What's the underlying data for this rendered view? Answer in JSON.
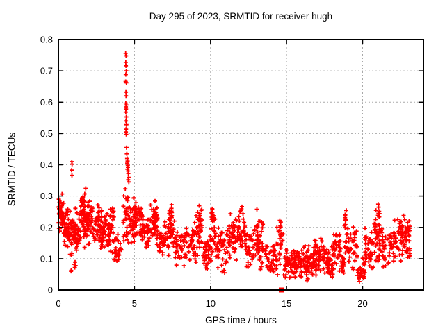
{
  "chart_data": {
    "type": "scatter",
    "title": "Day 295 of 2023, SRMTID for receiver hugh",
    "xlabel": "GPS time / hours",
    "ylabel": "SRMTID / TECUs",
    "xlim": [
      0,
      24
    ],
    "ylim": [
      0,
      0.8
    ],
    "xticks": [
      0,
      5,
      10,
      15,
      20
    ],
    "yticks": [
      0,
      0.1,
      0.2,
      0.3,
      0.4,
      0.5,
      0.6,
      0.7,
      0.8
    ],
    "grid": {
      "style": "dotted",
      "color": "#a8a8a8",
      "vertical_at": [
        5,
        10,
        15,
        20
      ],
      "horizontal_at": [
        0.1,
        0.2,
        0.3,
        0.4,
        0.5,
        0.6,
        0.7
      ]
    },
    "background": "#ffffff",
    "border_color": "#000000",
    "marker": {
      "shape": "plus",
      "color": "#ff0000",
      "size": 7
    },
    "flagged_point": {
      "shape": "filled-square",
      "color": "#ff0000",
      "x": 14.65,
      "y": 0.0,
      "size": 7
    },
    "legend": "none",
    "seed": 42,
    "clusters_format": "[t_start_hours, t_end_hours, n_points, value_min_TECUs, value_max_TECUs]",
    "clusters": [
      [
        0.0,
        0.35,
        40,
        0.17,
        0.315
      ],
      [
        0.35,
        0.7,
        40,
        0.13,
        0.27
      ],
      [
        0.7,
        1.05,
        36,
        0.1,
        0.26
      ],
      [
        0.8,
        1.2,
        5,
        0.055,
        0.085
      ],
      [
        1.05,
        1.45,
        40,
        0.08,
        0.28
      ],
      [
        1.45,
        1.8,
        44,
        0.13,
        0.33
      ],
      [
        1.5,
        1.62,
        8,
        0.22,
        0.325
      ],
      [
        1.8,
        2.2,
        42,
        0.13,
        0.305
      ],
      [
        2.2,
        2.7,
        40,
        0.13,
        0.285
      ],
      [
        2.6,
        2.72,
        6,
        0.18,
        0.285
      ],
      [
        2.7,
        3.2,
        40,
        0.1,
        0.26
      ],
      [
        3.2,
        3.65,
        34,
        0.09,
        0.28
      ],
      [
        3.3,
        3.42,
        6,
        0.17,
        0.275
      ],
      [
        3.65,
        4.25,
        28,
        0.065,
        0.19
      ],
      [
        4.25,
        4.6,
        26,
        0.15,
        0.335
      ],
      [
        4.6,
        4.95,
        28,
        0.13,
        0.3
      ],
      [
        4.95,
        5.45,
        36,
        0.14,
        0.315
      ],
      [
        5.0,
        5.12,
        7,
        0.2,
        0.31
      ],
      [
        5.45,
        6.05,
        40,
        0.12,
        0.27
      ],
      [
        6.05,
        6.55,
        36,
        0.12,
        0.295
      ],
      [
        6.25,
        6.36,
        7,
        0.19,
        0.295
      ],
      [
        6.55,
        7.25,
        42,
        0.1,
        0.225
      ],
      [
        7.25,
        7.65,
        30,
        0.1,
        0.275
      ],
      [
        7.35,
        7.5,
        7,
        0.17,
        0.27
      ],
      [
        7.65,
        8.35,
        42,
        0.07,
        0.2
      ],
      [
        8.35,
        9.05,
        40,
        0.08,
        0.225
      ],
      [
        9.05,
        9.5,
        28,
        0.1,
        0.295
      ],
      [
        9.25,
        9.37,
        8,
        0.16,
        0.295
      ],
      [
        9.5,
        10.05,
        36,
        0.05,
        0.18
      ],
      [
        10.05,
        10.35,
        22,
        0.08,
        0.305
      ],
      [
        10.12,
        10.24,
        8,
        0.14,
        0.305
      ],
      [
        10.35,
        11.05,
        42,
        0.05,
        0.2
      ],
      [
        11.05,
        11.75,
        40,
        0.07,
        0.26
      ],
      [
        11.75,
        12.3,
        36,
        0.08,
        0.28
      ],
      [
        12.3,
        12.85,
        36,
        0.06,
        0.2
      ],
      [
        12.85,
        13.45,
        40,
        0.05,
        0.265
      ],
      [
        13.0,
        13.15,
        8,
        0.12,
        0.265
      ],
      [
        13.45,
        14.3,
        36,
        0.04,
        0.17
      ],
      [
        14.3,
        14.78,
        26,
        0.03,
        0.235
      ],
      [
        14.55,
        14.68,
        7,
        0.1,
        0.235
      ],
      [
        14.78,
        15.25,
        26,
        0.03,
        0.15
      ],
      [
        15.25,
        16.05,
        55,
        0.02,
        0.135
      ],
      [
        16.05,
        16.75,
        55,
        0.02,
        0.15
      ],
      [
        16.75,
        17.45,
        55,
        0.04,
        0.175
      ],
      [
        17.45,
        18.05,
        48,
        0.03,
        0.145
      ],
      [
        18.05,
        18.55,
        34,
        0.05,
        0.21
      ],
      [
        18.55,
        18.8,
        18,
        0.04,
        0.12
      ],
      [
        18.8,
        19.05,
        15,
        0.07,
        0.26
      ],
      [
        18.83,
        18.92,
        6,
        0.16,
        0.285
      ],
      [
        19.05,
        19.65,
        34,
        0.06,
        0.22
      ],
      [
        19.65,
        20.15,
        30,
        0.02,
        0.105
      ],
      [
        20.15,
        20.75,
        40,
        0.06,
        0.2
      ],
      [
        20.75,
        21.25,
        34,
        0.07,
        0.26
      ],
      [
        20.8,
        20.9,
        6,
        0.15,
        0.27
      ],
      [
        21.02,
        21.14,
        7,
        0.15,
        0.285
      ],
      [
        21.25,
        22.05,
        40,
        0.05,
        0.2
      ],
      [
        22.05,
        22.75,
        40,
        0.08,
        0.25
      ],
      [
        22.5,
        22.62,
        7,
        0.14,
        0.255
      ],
      [
        22.75,
        23.15,
        34,
        0.08,
        0.235
      ]
    ],
    "spike_points": [
      [
        4.42,
        0.756
      ],
      [
        4.45,
        0.748
      ],
      [
        4.43,
        0.727
      ],
      [
        4.44,
        0.716
      ],
      [
        4.46,
        0.7
      ],
      [
        4.43,
        0.688
      ],
      [
        4.42,
        0.666
      ],
      [
        4.47,
        0.662
      ],
      [
        4.44,
        0.632
      ],
      [
        4.45,
        0.62
      ],
      [
        4.43,
        0.597
      ],
      [
        4.46,
        0.591
      ],
      [
        4.44,
        0.585
      ],
      [
        4.45,
        0.578
      ],
      [
        4.43,
        0.568
      ],
      [
        4.46,
        0.553
      ],
      [
        4.44,
        0.54
      ],
      [
        4.47,
        0.528
      ],
      [
        4.45,
        0.514
      ],
      [
        4.44,
        0.505
      ],
      [
        4.46,
        0.497
      ],
      [
        4.48,
        0.455
      ],
      [
        4.5,
        0.435
      ],
      [
        4.52,
        0.42
      ],
      [
        4.55,
        0.412
      ],
      [
        4.53,
        0.405
      ],
      [
        4.56,
        0.398
      ],
      [
        4.57,
        0.392
      ],
      [
        4.54,
        0.386
      ],
      [
        4.58,
        0.38
      ],
      [
        4.6,
        0.372
      ],
      [
        4.62,
        0.36
      ],
      [
        4.59,
        0.352
      ],
      [
        4.63,
        0.345
      ]
    ],
    "outlier_points": [
      [
        0.88,
        0.41
      ],
      [
        0.9,
        0.402
      ],
      [
        0.87,
        0.383
      ],
      [
        0.89,
        0.366
      ]
    ]
  }
}
